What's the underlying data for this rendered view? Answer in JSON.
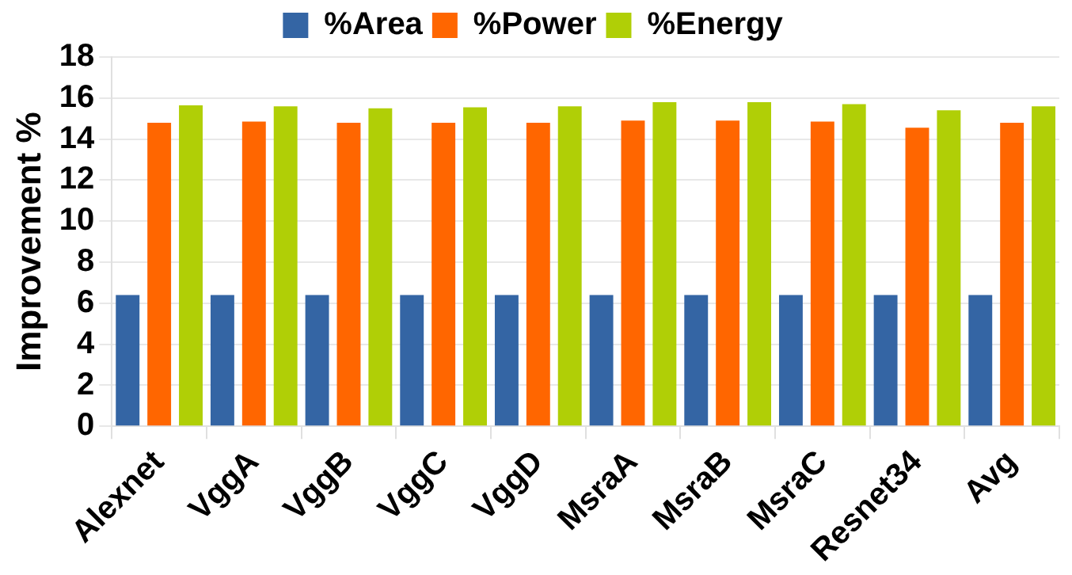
{
  "chart_data": {
    "type": "bar",
    "ylabel": "Improvement %",
    "categories": [
      "Alexnet",
      "VggA",
      "VggB",
      "VggC",
      "VggD",
      "MsraA",
      "MsraB",
      "MsraC",
      "Resnet34",
      "Avg"
    ],
    "series": [
      {
        "name": "%Area",
        "color": "#3465a4",
        "values": [
          6.4,
          6.4,
          6.4,
          6.4,
          6.4,
          6.4,
          6.4,
          6.4,
          6.4,
          6.4
        ]
      },
      {
        "name": "%Power",
        "color": "#ff6600",
        "values": [
          14.8,
          14.85,
          14.8,
          14.8,
          14.8,
          14.9,
          14.9,
          14.85,
          14.55,
          14.8
        ]
      },
      {
        "name": "%Energy",
        "color": "#b0cf06",
        "values": [
          15.65,
          15.6,
          15.5,
          15.55,
          15.6,
          15.8,
          15.8,
          15.7,
          15.4,
          15.6
        ]
      }
    ],
    "ylim": [
      0,
      18
    ],
    "yticks": [
      0,
      2,
      4,
      6,
      8,
      10,
      12,
      14,
      16,
      18
    ],
    "grid": "y",
    "legend": "top"
  }
}
